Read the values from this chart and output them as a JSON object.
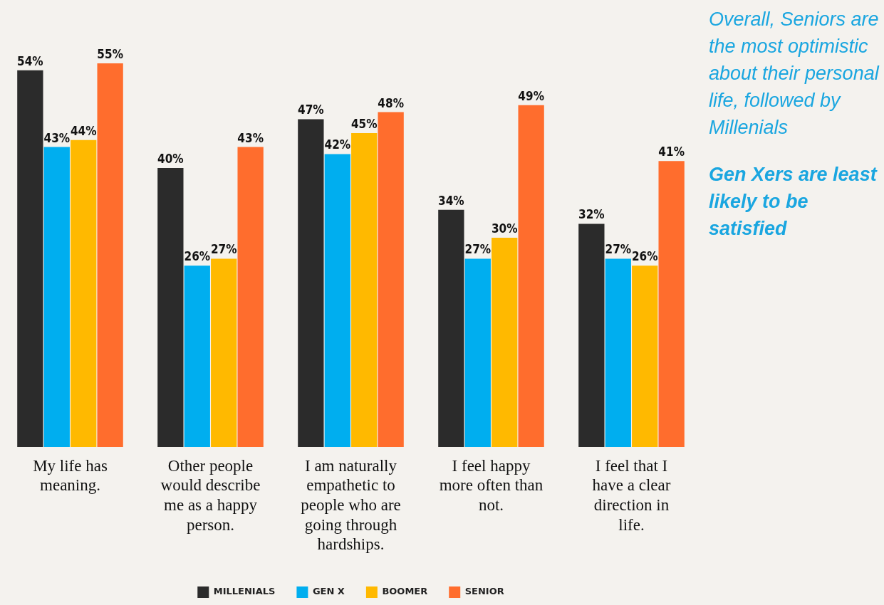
{
  "chart_data": {
    "type": "bar",
    "categories": [
      "My life has meaning.",
      "Other people would describe me as a happy person.",
      "I am naturally empathetic to people who are going through hardships.",
      "I feel happy more often than not.",
      "I feel that I have a clear direction in life."
    ],
    "series": [
      {
        "name": "MILLENIALS",
        "color": "#2b2b2b",
        "values": [
          54,
          40,
          47,
          34,
          32
        ],
        "value_labels": [
          "54%",
          "40%",
          "47%",
          "34%",
          "32%"
        ]
      },
      {
        "name": "GEN X",
        "color": "#00aeef",
        "values": [
          43,
          26,
          42,
          27,
          27
        ],
        "value_labels": [
          "43%",
          "26%",
          "42%",
          "27%",
          "27%"
        ]
      },
      {
        "name": "BOOMER",
        "color": "#ffb900",
        "values": [
          44,
          27,
          45,
          30,
          26
        ],
        "value_labels": [
          "44%",
          "27%",
          "45%",
          "30%",
          "26%"
        ]
      },
      {
        "name": "SENIOR",
        "color": "#ff6d2d",
        "values": [
          55,
          43,
          48,
          49,
          41
        ],
        "value_labels": [
          "55%",
          "43%",
          "48%",
          "49%",
          "41%"
        ]
      }
    ],
    "legend": "bottom",
    "grid": false,
    "annotations": [
      "Overall, Seniors are the most optimistic about their personal life, followed by Millenials",
      "Gen Xers are least likely to be satisfied"
    ]
  }
}
